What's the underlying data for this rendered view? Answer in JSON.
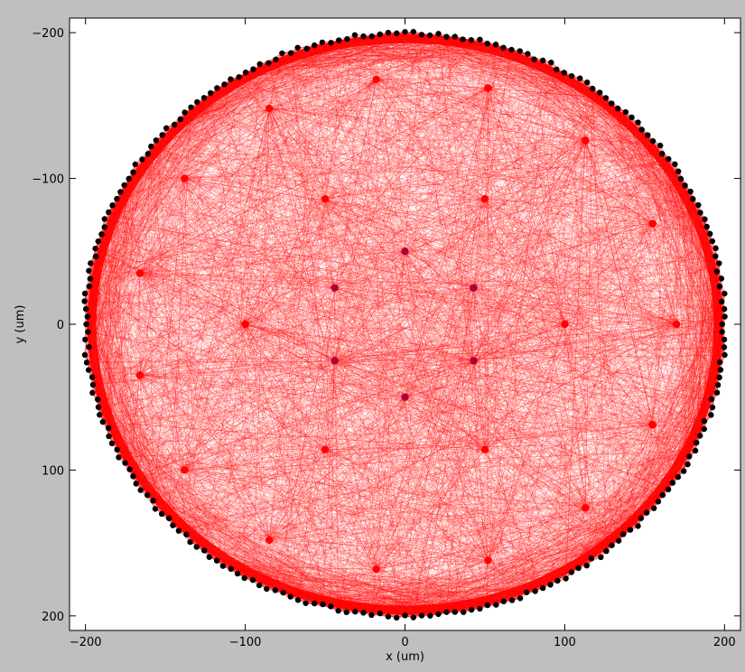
{
  "chart_data": {
    "type": "scatter",
    "title": "",
    "xlabel": "x (um)",
    "ylabel": "y (um)",
    "xlim": [
      -210,
      210
    ],
    "ylim": [
      -210,
      210
    ],
    "y_inverted": true,
    "grid": false,
    "xticks": [
      -200,
      -100,
      0,
      100,
      200
    ],
    "yticks": [
      -200,
      -100,
      0,
      100,
      200
    ],
    "xtick_labels": [
      "−200",
      "−100",
      "0",
      "100",
      "200"
    ],
    "ytick_labels": [
      "−200",
      "−100",
      "0",
      "100",
      "200"
    ],
    "colors": {
      "background": "#bfbfbf",
      "plot_face": "#ffffff",
      "edges": "#ff0000",
      "boundary_nodes": "#000000",
      "interior_nodes": "#ff0000",
      "inner_ring_nodes": "#b0003a"
    },
    "series": [
      {
        "name": "boundary nodes",
        "description_shape": "circle of radius 200",
        "radius": 200,
        "count": 240
      },
      {
        "name": "interior nodes",
        "x": [
          -18,
          52,
          -85,
          113,
          -138,
          -50,
          50,
          155,
          -166,
          0,
          -44,
          43,
          -100,
          100,
          170,
          -44,
          43,
          -166,
          0,
          155,
          -50,
          50,
          -138,
          113,
          -85,
          52,
          -18
        ],
        "y": [
          -168,
          -162,
          -148,
          -126,
          -100,
          -86,
          -86,
          -69,
          -35,
          -50,
          -25,
          -25,
          0,
          0,
          0,
          25,
          25,
          35,
          50,
          69,
          86,
          86,
          100,
          126,
          148,
          162,
          168
        ]
      }
    ],
    "edge_count_estimate": 6000
  }
}
